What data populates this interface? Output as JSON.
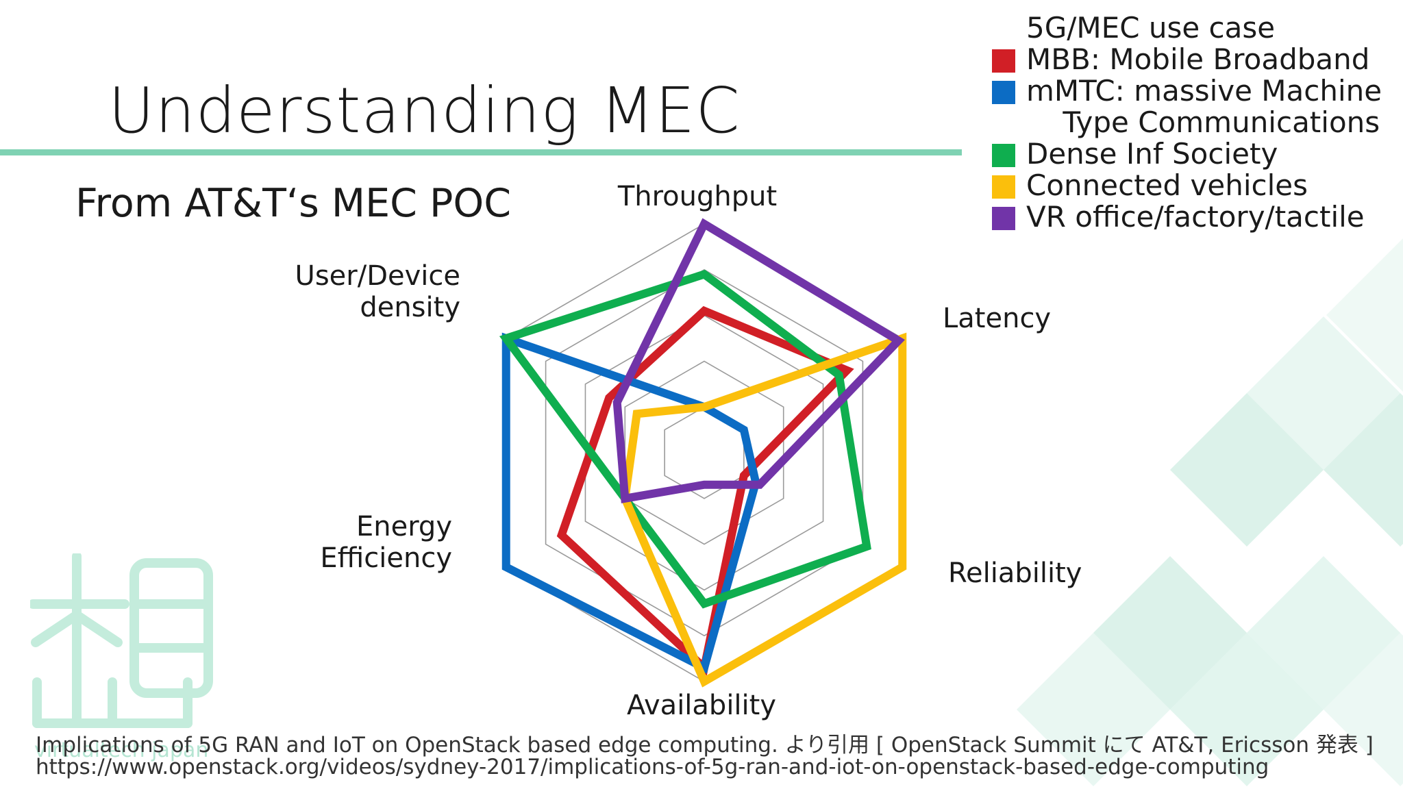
{
  "slide": {
    "title": "Understanding MEC",
    "subtitle": "From AT&T‘s MEC POC",
    "footer_line1": "Implications of 5G RAN and IoT on OpenStack based edge computing.  より引用 [ OpenStack Summit にて AT&T, Ericsson 発表 ]",
    "footer_line2": "https://www.openstack.org/videos/sydney-2017/implications-of-5g-ran-and-iot-on-openstack-based-edge-computing",
    "logo_text": "virtualtech japan",
    "accent_color": "#7fd2b3",
    "decoration_color": "#bfe8d9"
  },
  "legend": {
    "header": "5G/MEC use case"
  },
  "chart_data": {
    "type": "radar",
    "axes": [
      "Throughput",
      "Latency",
      "Reliability",
      "Availability",
      "Energy Efficiency",
      "User/Device density"
    ],
    "axis_label_lines": [
      [
        "Throughput"
      ],
      [
        "Latency"
      ],
      [
        "Reliability"
      ],
      [
        "Availability"
      ],
      [
        "Energy",
        "Efficiency"
      ],
      [
        "User/Device",
        "density"
      ]
    ],
    "rlim": [
      0,
      5
    ],
    "grid_levels": 5,
    "grid": true,
    "legend_position": "top-right",
    "series": [
      {
        "name": "MBB: Mobile Broadband",
        "label_lines": [
          "MBB: Mobile Broadband"
        ],
        "color": "#d11f26",
        "values": [
          3.1,
          3.6,
          1.0,
          4.7,
          3.6,
          2.4
        ]
      },
      {
        "name": "mMTC: massive Machine Type Communications",
        "label_lines": [
          "mMTC: massive Machine",
          "    Type Communications"
        ],
        "color": "#0c6cc4",
        "values": [
          1.0,
          1.0,
          1.3,
          4.7,
          5.0,
          5.0
        ]
      },
      {
        "name": "Dense Inf Society",
        "label_lines": [
          "Dense Inf Society"
        ],
        "color": "#0fae4f",
        "values": [
          3.9,
          3.4,
          4.1,
          3.3,
          2.0,
          5.0
        ]
      },
      {
        "name": "Connected vehicles",
        "label_lines": [
          "Connected vehicles"
        ],
        "color": "#fbbf0c",
        "values": [
          1.0,
          5.0,
          5.0,
          5.0,
          2.0,
          1.7
        ]
      },
      {
        "name": "VR office/factory/tactile",
        "label_lines": [
          "VR office/factory/tactile"
        ],
        "color": "#7134a8",
        "values": [
          5.0,
          4.9,
          1.4,
          0.7,
          2.0,
          2.2
        ]
      }
    ]
  }
}
